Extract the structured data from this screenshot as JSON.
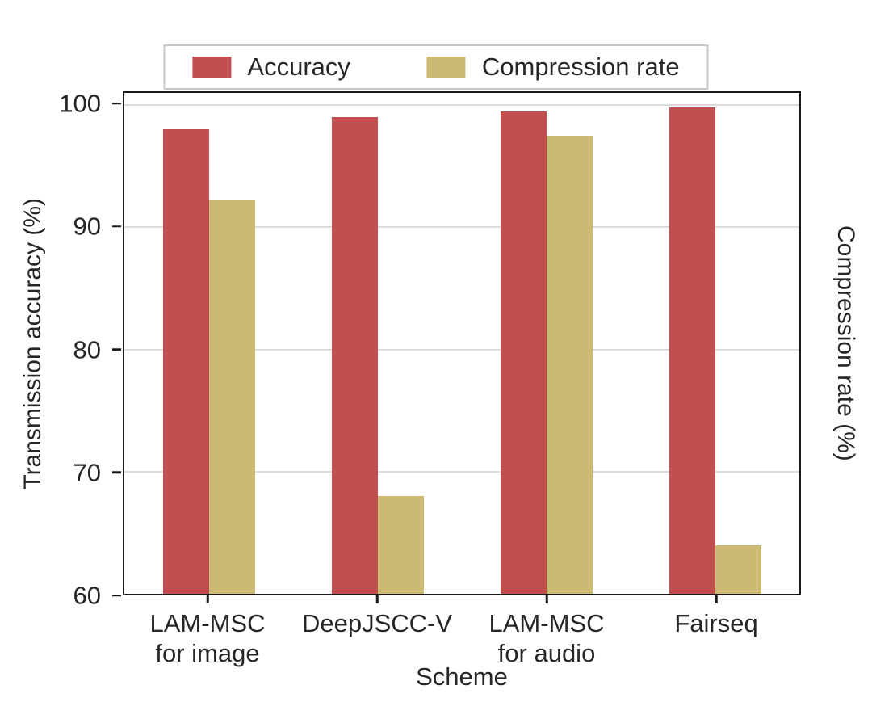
{
  "chart_data": {
    "type": "bar",
    "title": "",
    "xlabel": "Scheme",
    "ylabel_left": "Transmission accuracy (%)",
    "ylabel_right": "Compression rate (%)",
    "categories": [
      "LAM-MSC\nfor image",
      "DeepJSCC-V",
      "LAM-MSC\nfor audio",
      "Fairseq"
    ],
    "series": [
      {
        "name": "Accuracy",
        "color": "#c0504f",
        "values": [
          98.0,
          99.0,
          99.5,
          99.8
        ]
      },
      {
        "name": "Compression rate",
        "color": "#ccb974",
        "values": [
          92.2,
          68.0,
          97.5,
          64.0
        ]
      }
    ],
    "ylim": [
      60,
      100
    ],
    "yticks": [
      60,
      70,
      80,
      90,
      100
    ],
    "grid": "horizontal",
    "legend_position": "top",
    "colors": {
      "axis": "#1a1a1a",
      "gridline": "#dcdcdc",
      "legend_border": "#c8c8c8",
      "text": "#262626"
    }
  }
}
